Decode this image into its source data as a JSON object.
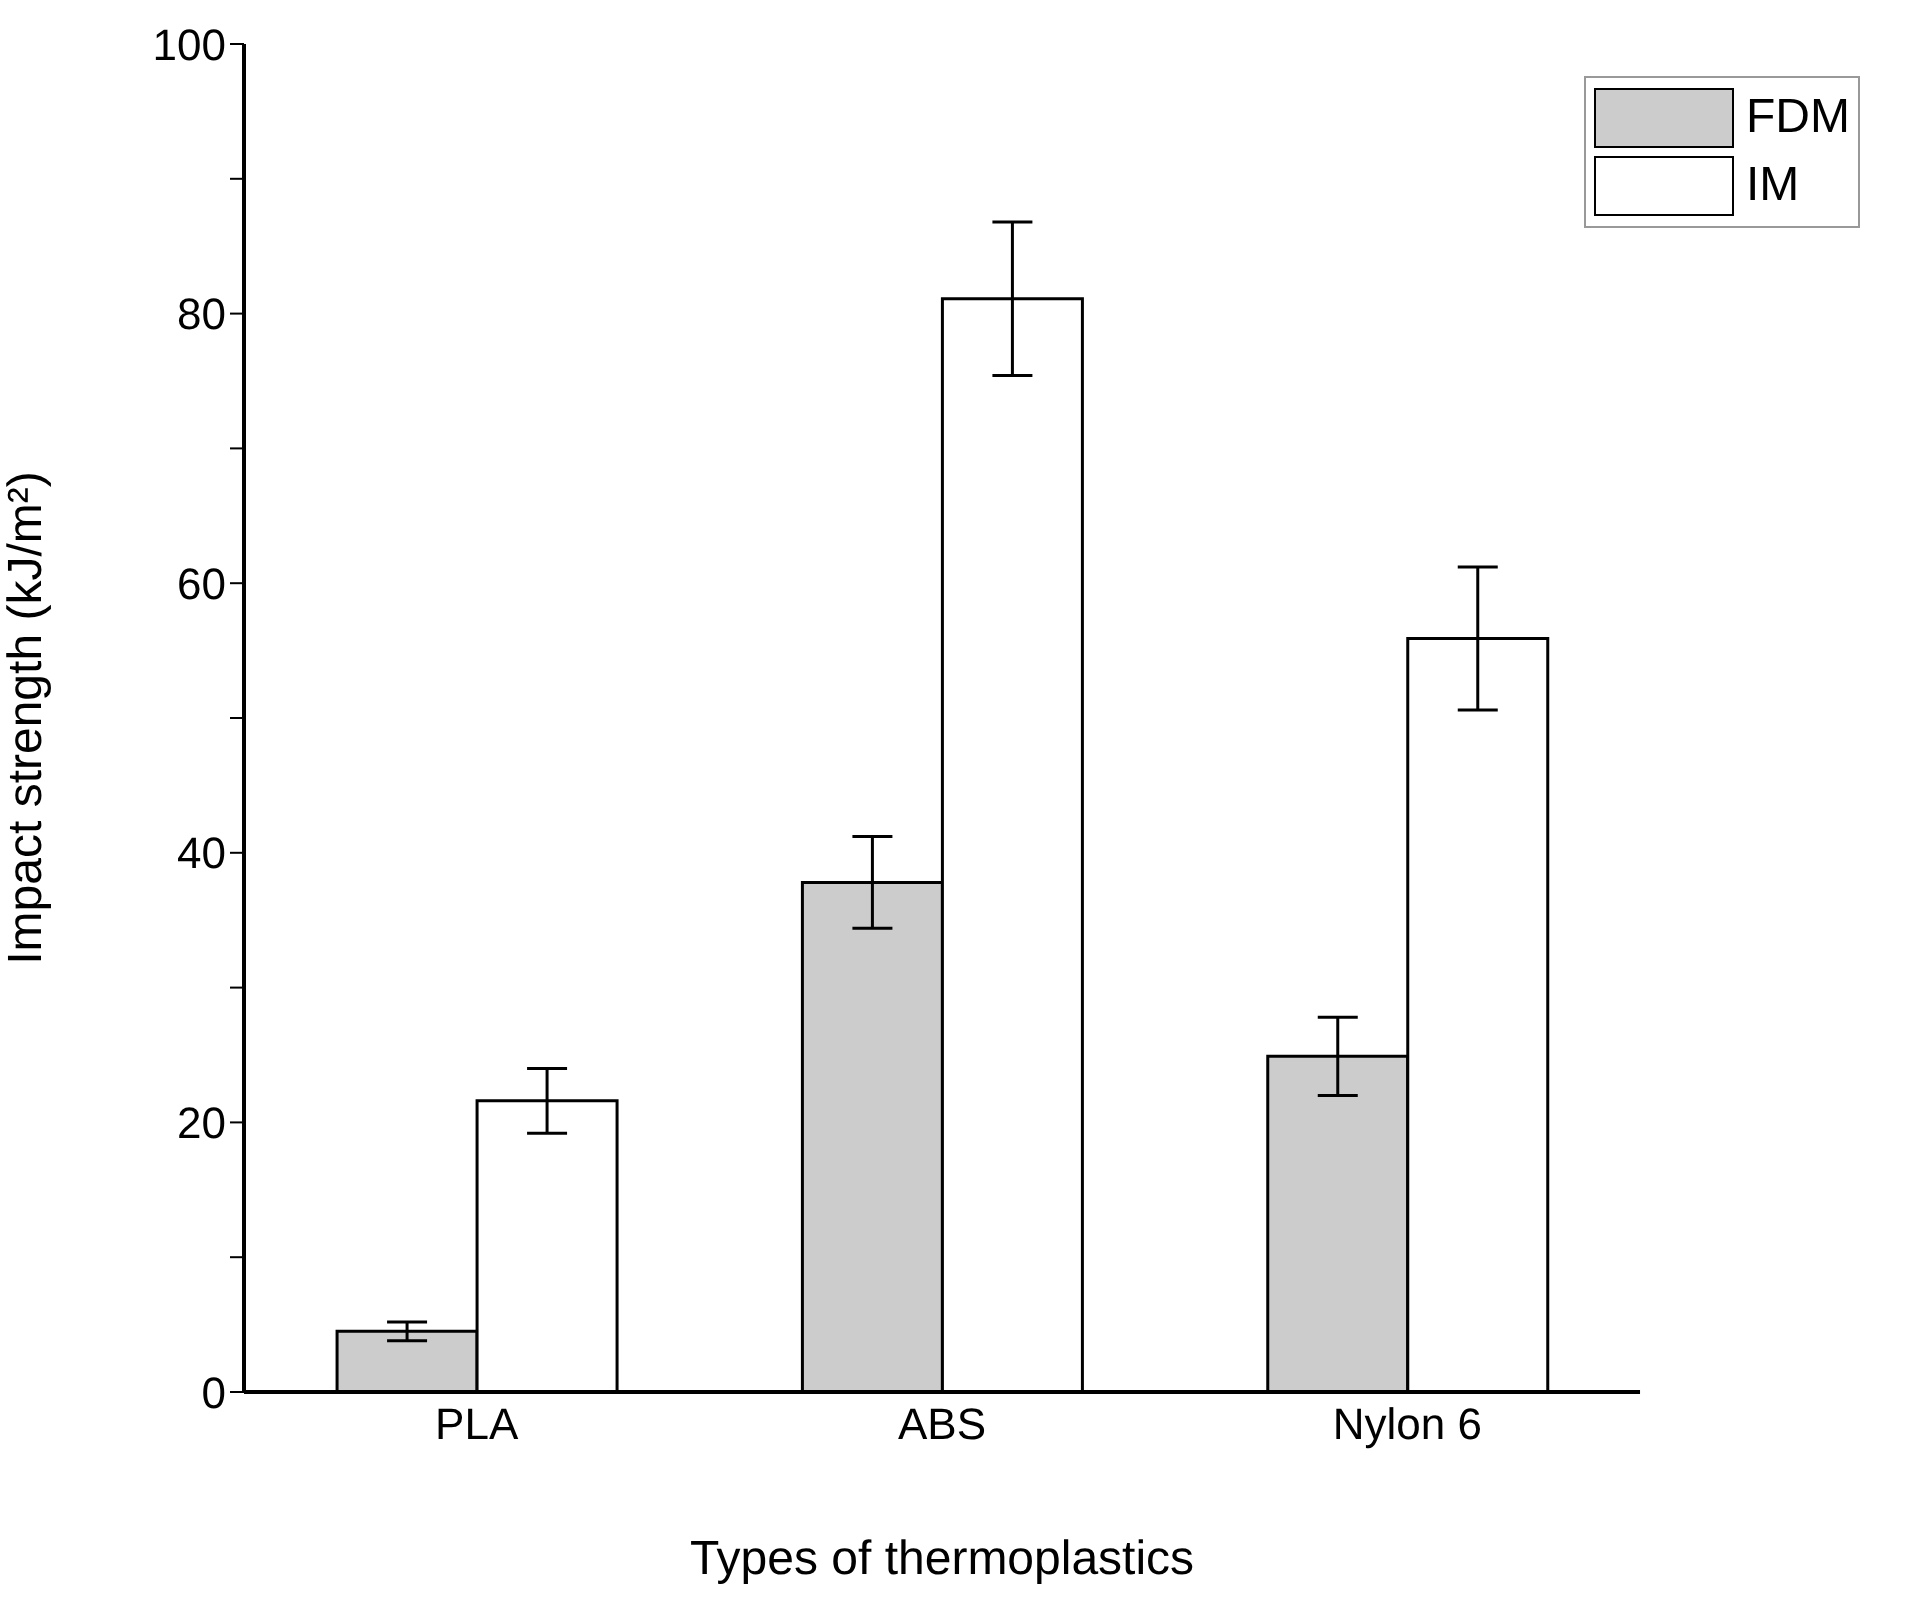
{
  "chart_data": {
    "type": "bar",
    "xlabel": "Types of thermoplastics",
    "ylabel": "Impact strength (kJ/m²)",
    "categories": [
      "PLA",
      "ABS",
      "Nylon 6"
    ],
    "series": [
      {
        "name": "FDM",
        "color": "#cccccc",
        "values": [
          4.5,
          37.8,
          24.9
        ],
        "errors": [
          0.7,
          3.4,
          2.9
        ]
      },
      {
        "name": "IM",
        "color": "#ffffff",
        "values": [
          21.6,
          81.1,
          55.9
        ],
        "errors": [
          2.4,
          5.7,
          5.3
        ]
      }
    ],
    "ylim": [
      0,
      100
    ],
    "yticks": [
      0,
      {
        "value": 10,
        "label": null
      },
      20,
      {
        "value": 30,
        "label": null
      },
      40,
      {
        "value": 50,
        "label": null
      },
      60,
      {
        "value": 70,
        "label": null
      },
      80,
      {
        "value": 90,
        "label": null
      },
      100
    ],
    "legend": "top right",
    "grid": false
  }
}
